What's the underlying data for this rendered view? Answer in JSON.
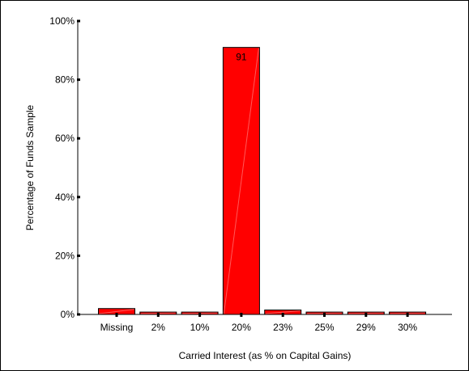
{
  "chart_data": {
    "type": "bar",
    "title": "",
    "xlabel": "Carried Interest (as % on Capital Gains)",
    "ylabel": "Percentage of Funds Sample",
    "categories": [
      "Missing",
      "2%",
      "10%",
      "20%",
      "23%",
      "25%",
      "29%",
      "30%"
    ],
    "values": [
      2.0,
      0.8,
      0.8,
      91,
      1.5,
      0.8,
      0.8,
      0.8
    ],
    "data_labels": [
      "",
      "",
      "",
      "91",
      "",
      "",
      "",
      ""
    ],
    "ylim": [
      0,
      100
    ],
    "yticks": [
      0,
      20,
      40,
      60,
      80,
      100
    ],
    "ytick_labels": [
      "0%",
      "20%",
      "40%",
      "60%",
      "80%",
      "100%"
    ],
    "grid": false,
    "legend": "none",
    "colors": {
      "bar_fill": "#ff0000",
      "bar_stroke": "#000000"
    }
  }
}
